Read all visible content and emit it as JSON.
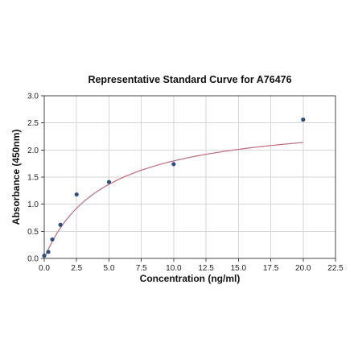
{
  "chart_data": {
    "type": "scatter",
    "title": "Representative Standard Curve for A76476",
    "xlabel": "Concentration (ng/ml)",
    "ylabel": "Absorbance (450nm)",
    "xlim": [
      0,
      22.5
    ],
    "ylim": [
      0,
      3.0
    ],
    "x_ticks": [
      "0.0",
      "2.5",
      "5.0",
      "7.5",
      "10.0",
      "12.5",
      "15.0",
      "17.5",
      "20.0",
      "22.5"
    ],
    "y_ticks": [
      "0.0",
      "0.5",
      "1.0",
      "1.5",
      "2.0",
      "2.5",
      "3.0"
    ],
    "grid": true,
    "series": [
      {
        "points": [
          {
            "x": 0.0,
            "y": 0.05
          },
          {
            "x": 0.313,
            "y": 0.12
          },
          {
            "x": 0.625,
            "y": 0.35
          },
          {
            "x": 1.25,
            "y": 0.62
          },
          {
            "x": 2.5,
            "y": 1.18
          },
          {
            "x": 5.0,
            "y": 1.41
          },
          {
            "x": 10.0,
            "y": 1.74
          },
          {
            "x": 20.0,
            "y": 2.56
          }
        ],
        "color": "#2f4f7f"
      }
    ],
    "fit_curve": {
      "color": "#c06a7d",
      "x_range": [
        0,
        20
      ]
    }
  }
}
